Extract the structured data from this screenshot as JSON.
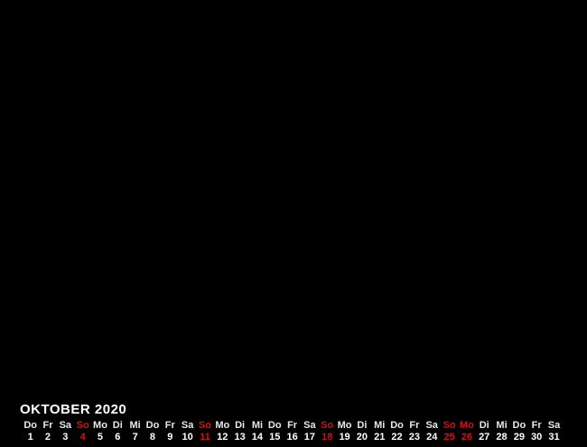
{
  "background_color": "#000000",
  "calendar": {
    "title": "OKTOBER 2020",
    "title_color": "#ffffff",
    "weekday_color": "#e8e8e8",
    "date_color": "#ffffff",
    "highlight_color": "#cc1111",
    "days": [
      {
        "weekday": "Do",
        "date": "1",
        "highlight": false
      },
      {
        "weekday": "Fr",
        "date": "2",
        "highlight": false
      },
      {
        "weekday": "Sa",
        "date": "3",
        "highlight": false
      },
      {
        "weekday": "So",
        "date": "4",
        "highlight": true
      },
      {
        "weekday": "Mo",
        "date": "5",
        "highlight": false
      },
      {
        "weekday": "Di",
        "date": "6",
        "highlight": false
      },
      {
        "weekday": "Mi",
        "date": "7",
        "highlight": false
      },
      {
        "weekday": "Do",
        "date": "8",
        "highlight": false
      },
      {
        "weekday": "Fr",
        "date": "9",
        "highlight": false
      },
      {
        "weekday": "Sa",
        "date": "10",
        "highlight": false
      },
      {
        "weekday": "So",
        "date": "11",
        "highlight": true
      },
      {
        "weekday": "Mo",
        "date": "12",
        "highlight": false
      },
      {
        "weekday": "Di",
        "date": "13",
        "highlight": false
      },
      {
        "weekday": "Mi",
        "date": "14",
        "highlight": false
      },
      {
        "weekday": "Do",
        "date": "15",
        "highlight": false
      },
      {
        "weekday": "Fr",
        "date": "16",
        "highlight": false
      },
      {
        "weekday": "Sa",
        "date": "17",
        "highlight": false
      },
      {
        "weekday": "So",
        "date": "18",
        "highlight": true
      },
      {
        "weekday": "Mo",
        "date": "19",
        "highlight": false
      },
      {
        "weekday": "Di",
        "date": "20",
        "highlight": false
      },
      {
        "weekday": "Mi",
        "date": "21",
        "highlight": false
      },
      {
        "weekday": "Do",
        "date": "22",
        "highlight": false
      },
      {
        "weekday": "Fr",
        "date": "23",
        "highlight": false
      },
      {
        "weekday": "Sa",
        "date": "24",
        "highlight": false
      },
      {
        "weekday": "So",
        "date": "25",
        "highlight": true
      },
      {
        "weekday": "Mo",
        "date": "26",
        "highlight": true
      },
      {
        "weekday": "Di",
        "date": "27",
        "highlight": false
      },
      {
        "weekday": "Mi",
        "date": "28",
        "highlight": false
      },
      {
        "weekday": "Do",
        "date": "29",
        "highlight": false
      },
      {
        "weekday": "Fr",
        "date": "30",
        "highlight": false
      },
      {
        "weekday": "Sa",
        "date": "31",
        "highlight": false
      }
    ]
  }
}
